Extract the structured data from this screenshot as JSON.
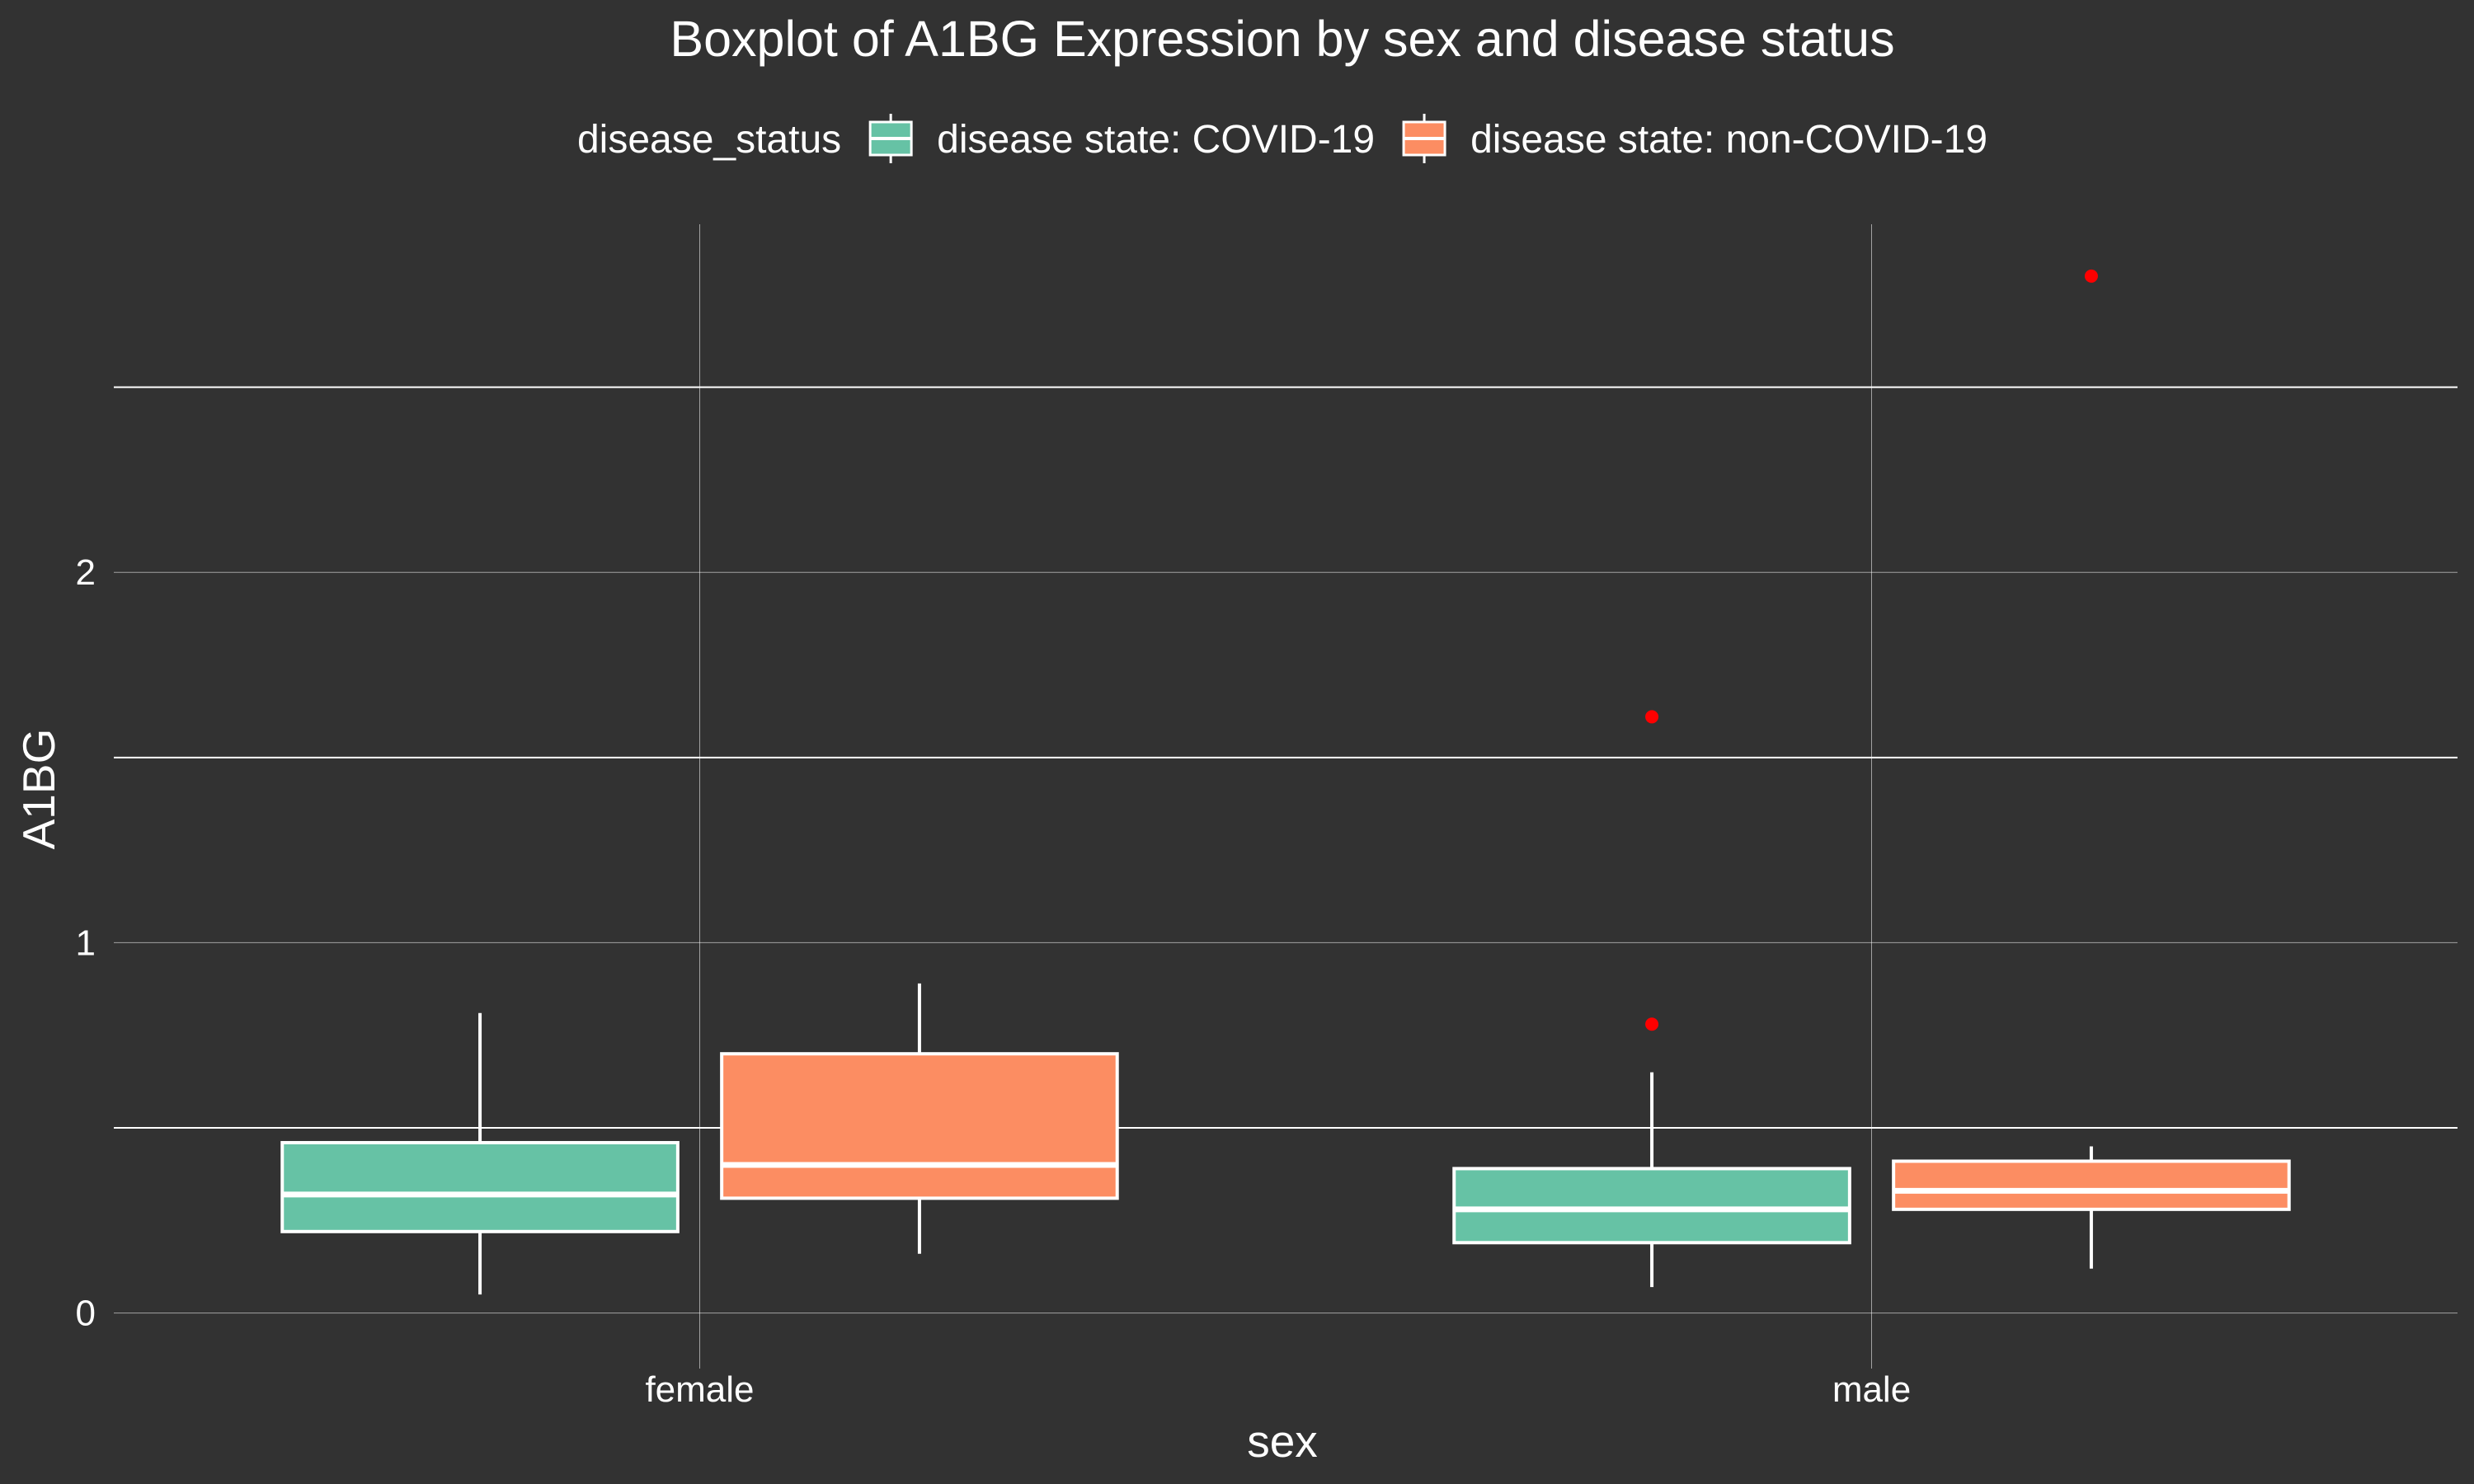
{
  "chart_data": {
    "type": "boxplot",
    "title": "Boxplot of A1BG Expression by sex and disease status",
    "xlabel": "sex",
    "ylabel": "A1BG",
    "categories": [
      "female",
      "male"
    ],
    "ylim": [
      -0.15,
      2.94
    ],
    "yticks": [
      0,
      1,
      2
    ],
    "grid": true,
    "legend": {
      "position": "top",
      "title": "disease_status",
      "entries": [
        "disease state: COVID-19",
        "disease state: non-COVID-19"
      ]
    },
    "series": [
      {
        "name": "disease state: COVID-19",
        "color": "#66c2a5",
        "boxes": [
          {
            "category": "female",
            "whisker_low": 0.05,
            "q1": 0.22,
            "median": 0.32,
            "q3": 0.46,
            "whisker_high": 0.81,
            "outliers": []
          },
          {
            "category": "male",
            "whisker_low": 0.07,
            "q1": 0.19,
            "median": 0.28,
            "q3": 0.39,
            "whisker_high": 0.65,
            "outliers": [
              0.78,
              1.61
            ]
          }
        ]
      },
      {
        "name": "disease state: non-COVID-19",
        "color": "#fc8d62",
        "boxes": [
          {
            "category": "female",
            "whisker_low": 0.16,
            "q1": 0.31,
            "median": 0.4,
            "q3": 0.7,
            "whisker_high": 0.89,
            "outliers": []
          },
          {
            "category": "male",
            "whisker_low": 0.12,
            "q1": 0.28,
            "median": 0.33,
            "q3": 0.41,
            "whisker_high": 0.45,
            "outliers": [
              2.8
            ]
          }
        ]
      }
    ],
    "outlier_color": "#ff0000"
  }
}
